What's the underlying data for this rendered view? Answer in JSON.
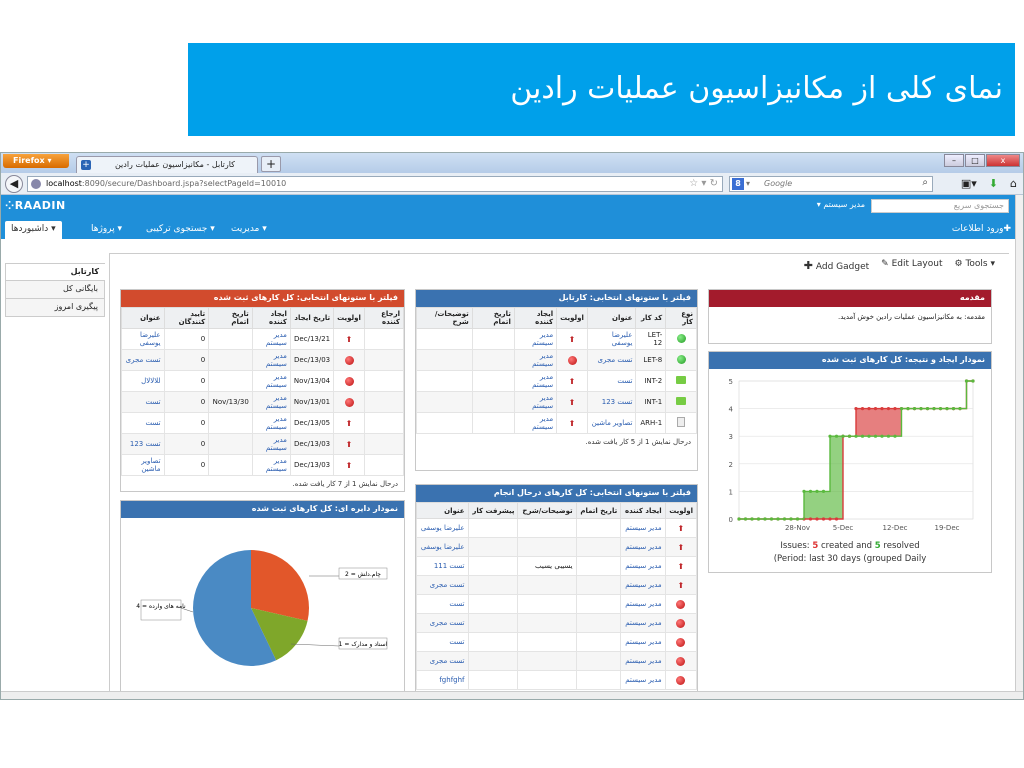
{
  "slide_title": "نمای کلی از مکانیزاسیون عملیات رادین",
  "browser": {
    "app_button": "Firefox",
    "tab_title": "کارتابل - مکانیزاسیون عملیات رادین",
    "url_host": "localhost",
    "url_path": ":8090/secure/Dashboard.jspa?selectPageId=10010",
    "search_engine": "Google",
    "search_placeholder": "Google"
  },
  "app": {
    "logo": "RAADIN",
    "quick_search_placeholder": "جستجوی سریع",
    "sys_admin": "مدیر سیستم ▾",
    "menu": {
      "dashboards": "داشبوردها ▾",
      "projects": "پروژها ▾",
      "combined_search": "جستجوی ترکیبی ▾",
      "management": "مدیریت ▾",
      "enter_info": "ورود اطلاعات"
    }
  },
  "sidebar": [
    "کارتابل",
    "بایگانی کل",
    "پیگیری امروز"
  ],
  "toolbar": {
    "add_gadget": "Add Gadget",
    "edit_layout": "Edit Layout",
    "tools": "Tools ▾"
  },
  "gadget_registered": {
    "title": "فیلتر با ستونهای انتخابی: کل کارهای ثبت شده",
    "headers": [
      "ارجاع کننده",
      "اولویت",
      "تاریخ ایجاد",
      "ایجاد کننده",
      "تاریخ اتمام",
      "تایید کنندگان",
      "عنوان"
    ],
    "rows": [
      {
        "priority": "up",
        "created": "Dec/13/21",
        "creator": "مدیر سیستم",
        "end": "",
        "approvers": "0",
        "title": "علیرضا یوسفی"
      },
      {
        "priority": "circle",
        "created": "Dec/13/03",
        "creator": "مدیر سیستم",
        "end": "",
        "approvers": "0",
        "title": "تست مجری"
      },
      {
        "priority": "circle",
        "created": "Nov/13/04",
        "creator": "مدیر سیستم",
        "end": "",
        "approvers": "0",
        "title": "للالالال"
      },
      {
        "priority": "circle",
        "created": "Nov/13/01",
        "creator": "مدیر سیستم",
        "end": "Nov/13/30",
        "approvers": "0",
        "title": "تست"
      },
      {
        "priority": "up",
        "created": "Dec/13/05",
        "creator": "مدیر سیستم",
        "end": "",
        "approvers": "0",
        "title": "تست"
      },
      {
        "priority": "up",
        "created": "Dec/13/03",
        "creator": "مدیر سیستم",
        "end": "",
        "approvers": "0",
        "title": "تست 123"
      },
      {
        "priority": "up",
        "created": "Dec/13/03",
        "creator": "مدیر سیستم",
        "end": "",
        "approvers": "0",
        "title": "تصاویر ماشین"
      }
    ],
    "footer": "درحال نمایش 1 از 7 کار یافت شده."
  },
  "gadget_pie": {
    "title": "نمودار دایره ای: کل کارهای ثبت شده",
    "labels": [
      "چام.دلش = 2",
      "نامه های وارده = 4",
      "اسناد و مدارک = 1"
    ]
  },
  "gadget_cartable": {
    "title": "فیلتر با ستونهای انتخابی: کارتابل",
    "headers": [
      "نوع کار",
      "کد کار",
      "عنوان",
      "اولویت",
      "ایجاد کننده",
      "تاریخ اتمام",
      "توضیحات/شرح"
    ],
    "rows": [
      {
        "type": "gcirc",
        "code": "LET-12",
        "title": "علیرضا یوسفی",
        "priority": "up",
        "creator": "مدیر سیستم"
      },
      {
        "type": "gcirc",
        "code": "LET-8",
        "title": "تست مجری",
        "priority": "circle",
        "creator": "مدیر سیستم"
      },
      {
        "type": "gsq",
        "code": "INT-2",
        "title": "تست",
        "priority": "up",
        "creator": "مدیر سیستم"
      },
      {
        "type": "gsq",
        "code": "INT-1",
        "title": "تست 123",
        "priority": "up",
        "creator": "مدیر سیستم"
      },
      {
        "type": "doc",
        "code": "ARH-1",
        "title": "تصاویر ماشین",
        "priority": "up",
        "creator": "مدیر سیستم"
      }
    ],
    "footer": "درحال نمایش 1 از 5 کار یافت شده."
  },
  "gadget_inprogress": {
    "title": "فیلتر با ستونهای انتخابی: کل کارهای درحال انجام",
    "headers": [
      "اولویت",
      "ایجاد کننده",
      "تاریخ اتمام",
      "توضیحات/شرح",
      "پیشرفت کار",
      "عنوان"
    ],
    "rows": [
      {
        "priority": "up",
        "creator": "مدیر سیستم",
        "desc": "",
        "title": "علیرضا یوسفی"
      },
      {
        "priority": "up",
        "creator": "مدیر سیستم",
        "desc": "",
        "title": "علیرضا یوسفی"
      },
      {
        "priority": "up",
        "creator": "مدیر سیستم",
        "desc": "یسیبی یسیب",
        "title": "تست 111"
      },
      {
        "priority": "up",
        "creator": "مدیر سیستم",
        "desc": "",
        "title": "تست مجری"
      },
      {
        "priority": "circle",
        "creator": "مدیر سیستم",
        "desc": "",
        "title": "تست"
      },
      {
        "priority": "circle",
        "creator": "مدیر سیستم",
        "desc": "",
        "title": "تست مجری"
      },
      {
        "priority": "circle",
        "creator": "مدیر سیستم",
        "desc": "",
        "title": "تست"
      },
      {
        "priority": "circle",
        "creator": "مدیر سیستم",
        "desc": "",
        "title": "تست مجری"
      },
      {
        "priority": "circle",
        "creator": "مدیر سیستم",
        "desc": "",
        "title": "fghfghf"
      }
    ]
  },
  "gadget_intro": {
    "title": "مقدمه",
    "text": "مقدمه: به مکانیزاسیون عملیات رادین خوش آمدید."
  },
  "gadget_created_resolved": {
    "title": "نمودار ایجاد و نتیجه: کل کارهای ثبت شده",
    "summary_prefix": "Issues: ",
    "created_count": "5",
    "created_text": " created and ",
    "resolved_count": "5",
    "resolved_text": " resolved",
    "period": "(Period: last 30 days (grouped Daily"
  },
  "chart_data": [
    {
      "type": "pie",
      "title": "نمودار دایره ای: کل کارهای ثبت شده",
      "slices": [
        {
          "label": "نامه های وارده",
          "value": 4,
          "color": "#4a8ac4"
        },
        {
          "label": "چام.دلش",
          "value": 2,
          "color": "#e2572a"
        },
        {
          "label": "اسناد و مدارک",
          "value": 1,
          "color": "#7fa72a"
        }
      ]
    },
    {
      "type": "line",
      "title": "نمودار ایجاد و نتیجه: کل کارهای ثبت شده",
      "x_ticks": [
        "28-Nov",
        "5-Dec",
        "12-Dec",
        "19-Dec"
      ],
      "y_ticks": [
        0,
        1,
        2,
        3,
        4,
        5
      ],
      "ylim": [
        0,
        5
      ],
      "series": [
        {
          "name": "created",
          "color": "#d93b3b",
          "values": [
            0,
            0,
            0,
            0,
            0,
            0,
            0,
            0,
            0,
            0,
            0,
            0,
            0,
            0,
            0,
            0,
            3,
            3,
            4,
            4,
            4,
            4,
            4,
            4,
            4,
            4,
            4,
            4,
            4,
            4,
            4,
            4,
            4,
            4,
            4,
            5,
            5
          ]
        },
        {
          "name": "resolved",
          "color": "#5ab93e",
          "values": [
            0,
            0,
            0,
            0,
            0,
            0,
            0,
            0,
            0,
            0,
            1,
            1,
            1,
            1,
            3,
            3,
            3,
            3,
            3,
            3,
            3,
            3,
            3,
            3,
            3,
            4,
            4,
            4,
            4,
            4,
            4,
            4,
            4,
            4,
            4,
            5,
            5
          ]
        }
      ]
    }
  ]
}
